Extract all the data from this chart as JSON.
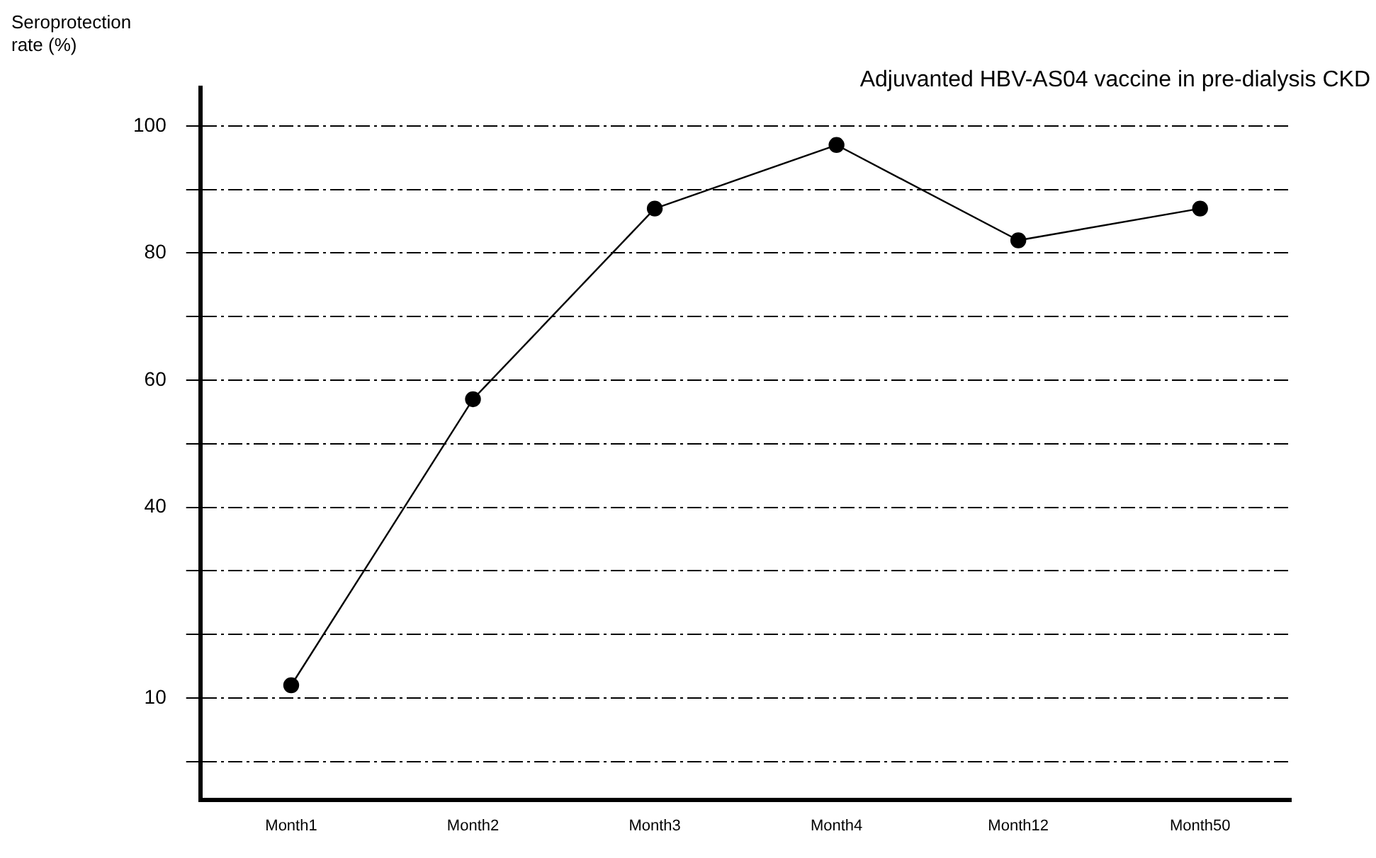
{
  "chart_data": {
    "type": "line",
    "title": "Adjuvanted HBV-AS04 vaccine in pre-dialysis CKD",
    "ylabel": "Seroprotection rate (%)",
    "categories": [
      "Month1",
      "Month2",
      "Month3",
      "Month4",
      "Month12",
      "Month50"
    ],
    "series": [
      {
        "color": "#000000",
        "values": [
          12,
          57,
          87,
          97,
          82,
          87
        ]
      }
    ],
    "ylim": [
      -6,
      106
    ],
    "yticks": [
      {
        "value": 0,
        "label": null
      },
      10,
      {
        "value": 20,
        "label": null
      },
      {
        "value": 30,
        "label": null
      },
      40,
      {
        "value": 50,
        "label": null
      },
      60,
      {
        "value": 70,
        "label": null
      },
      80,
      {
        "value": 90,
        "label": null
      },
      100
    ],
    "grid": "y",
    "marker": "circle",
    "line_style": "solid",
    "legend": false
  }
}
